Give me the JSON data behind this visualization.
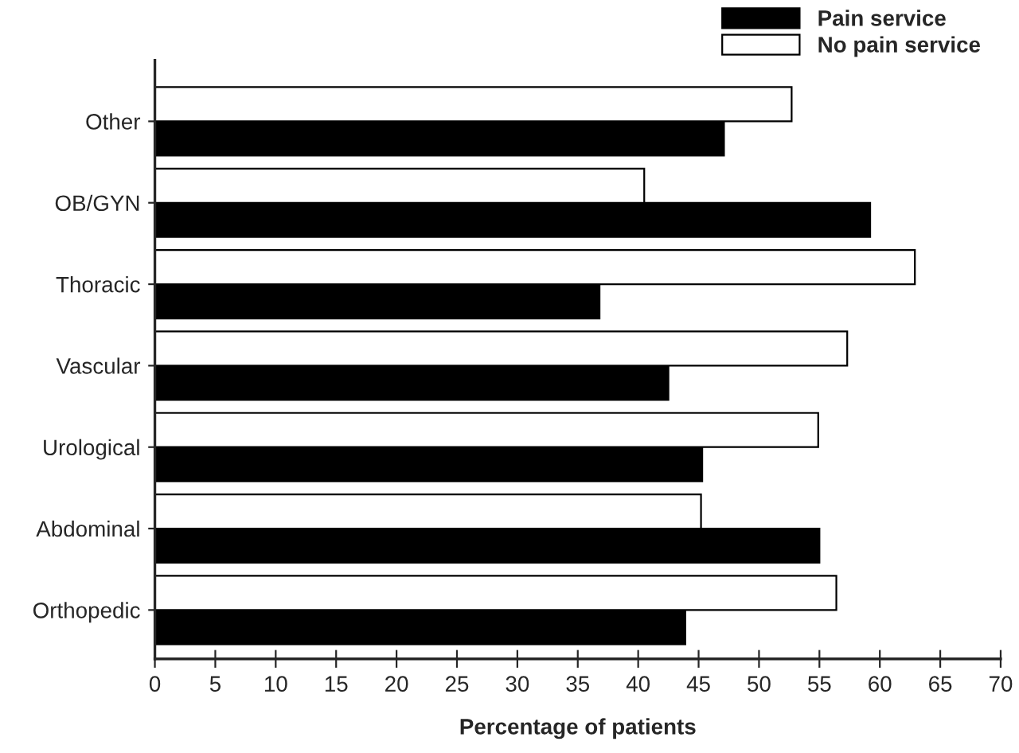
{
  "chart_data": {
    "type": "bar",
    "orientation": "horizontal",
    "xlabel": "Percentage of patients",
    "categories": [
      "Other",
      "OB/GYN",
      "Thoracic",
      "Vascular",
      "Urological",
      "Abdominal",
      "Orthopedic"
    ],
    "series": [
      {
        "name": "Pain service",
        "color": "#000000",
        "values": [
          47.1,
          59.2,
          36.8,
          42.5,
          45.3,
          55.0,
          43.9
        ]
      },
      {
        "name": "No pain service",
        "color": "#ffffff",
        "values": [
          52.7,
          40.5,
          62.9,
          57.3,
          54.9,
          45.2,
          56.4
        ]
      }
    ],
    "xlim": [
      0,
      70
    ],
    "xticks": [
      0,
      5,
      10,
      15,
      20,
      25,
      30,
      35,
      40,
      45,
      50,
      55,
      60,
      65,
      70
    ],
    "grid": false,
    "legend": "top right"
  }
}
